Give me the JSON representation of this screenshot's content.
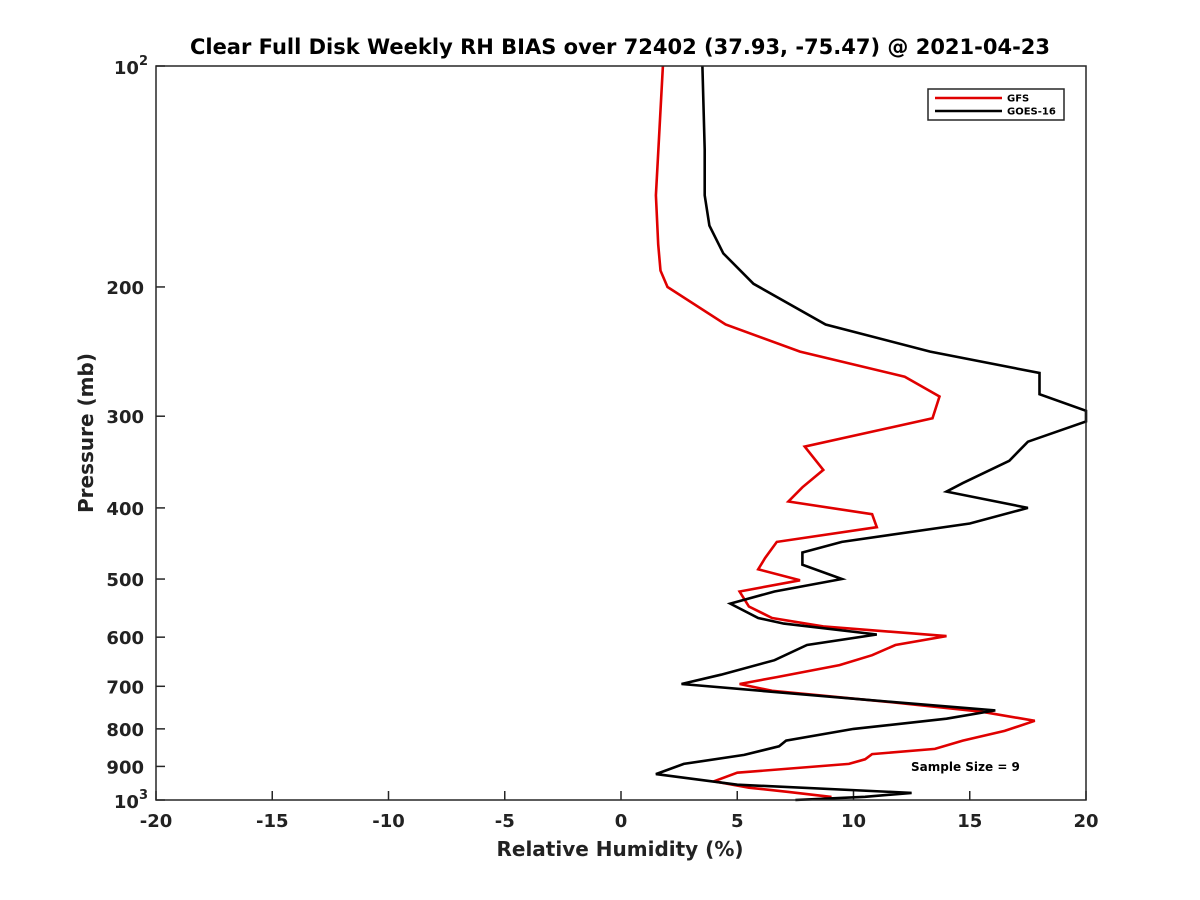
{
  "chart_data": {
    "type": "line",
    "title": "Clear Full Disk Weekly RH BIAS over 72402 (37.93, -75.47) @ 2021-04-23",
    "xlabel": "Relative Humidity (%)",
    "ylabel": "Pressure (mb)",
    "xlim": [
      -20,
      20
    ],
    "ylim": [
      100,
      1000
    ],
    "yscale": "log",
    "yreversed": true,
    "x_ticks": [
      "-20",
      "-15",
      "-10",
      "-5",
      "0",
      "5",
      "10",
      "15",
      "20"
    ],
    "y_ticks": [
      {
        "value": 100,
        "base": "10",
        "exp": "2"
      },
      {
        "value": 200,
        "label": "200"
      },
      {
        "value": 300,
        "label": "300"
      },
      {
        "value": 400,
        "label": "400"
      },
      {
        "value": 500,
        "label": "500"
      },
      {
        "value": 600,
        "label": "600"
      },
      {
        "value": 700,
        "label": "700"
      },
      {
        "value": 800,
        "label": "800"
      },
      {
        "value": 900,
        "label": "900"
      },
      {
        "value": 1000,
        "base": "10",
        "exp": "3"
      }
    ],
    "legend": {
      "position": "top-right",
      "entries": [
        "GFS",
        "GOES-16"
      ]
    },
    "annotation": "Sample Size = 9",
    "series": [
      {
        "name": "GFS",
        "color": "#e00000",
        "points": [
          [
            1.8,
            100
          ],
          [
            1.5,
            150
          ],
          [
            1.6,
            175
          ],
          [
            1.7,
            190
          ],
          [
            2.0,
            200
          ],
          [
            4.5,
            225
          ],
          [
            7.7,
            245
          ],
          [
            12.2,
            265
          ],
          [
            13.7,
            282
          ],
          [
            13.4,
            302
          ],
          [
            7.9,
            330
          ],
          [
            8.7,
            355
          ],
          [
            7.8,
            375
          ],
          [
            7.2,
            392
          ],
          [
            10.8,
            408
          ],
          [
            11.0,
            425
          ],
          [
            6.7,
            445
          ],
          [
            6.2,
            468
          ],
          [
            5.9,
            485
          ],
          [
            7.7,
            502
          ],
          [
            5.1,
            520
          ],
          [
            5.5,
            545
          ],
          [
            6.5,
            565
          ],
          [
            8.7,
            580
          ],
          [
            14.0,
            598
          ],
          [
            11.8,
            615
          ],
          [
            10.8,
            635
          ],
          [
            9.4,
            655
          ],
          [
            6.7,
            680
          ],
          [
            5.1,
            695
          ],
          [
            6.5,
            710
          ],
          [
            11.5,
            735
          ],
          [
            15.5,
            758
          ],
          [
            17.8,
            780
          ],
          [
            16.5,
            805
          ],
          [
            14.7,
            830
          ],
          [
            13.5,
            852
          ],
          [
            10.8,
            866
          ],
          [
            10.5,
            880
          ],
          [
            9.8,
            893
          ],
          [
            5.0,
            918
          ],
          [
            4.0,
            943
          ],
          [
            5.5,
            962
          ],
          [
            7.2,
            975
          ],
          [
            9.0,
            990
          ],
          [
            9.0,
            1000
          ]
        ]
      },
      {
        "name": "GOES-16",
        "color": "#000000",
        "points": [
          [
            3.5,
            100
          ],
          [
            3.6,
            130
          ],
          [
            3.6,
            150
          ],
          [
            3.8,
            165
          ],
          [
            4.4,
            180
          ],
          [
            5.7,
            198
          ],
          [
            8.8,
            225
          ],
          [
            13.3,
            245
          ],
          [
            18.0,
            262
          ],
          [
            18.0,
            280
          ],
          [
            20.0,
            295
          ],
          [
            20.0,
            305
          ],
          [
            17.5,
            325
          ],
          [
            16.7,
            345
          ],
          [
            14.7,
            370
          ],
          [
            14.0,
            380
          ],
          [
            17.5,
            400
          ],
          [
            15.0,
            420
          ],
          [
            9.5,
            445
          ],
          [
            7.8,
            460
          ],
          [
            7.8,
            478
          ],
          [
            9.5,
            500
          ],
          [
            6.6,
            520
          ],
          [
            4.7,
            540
          ],
          [
            5.9,
            565
          ],
          [
            7.0,
            575
          ],
          [
            11.0,
            595
          ],
          [
            8.0,
            615
          ],
          [
            6.6,
            645
          ],
          [
            4.3,
            675
          ],
          [
            2.6,
            695
          ],
          [
            10.5,
            730
          ],
          [
            16.1,
            755
          ],
          [
            14.0,
            775
          ],
          [
            10.0,
            800
          ],
          [
            7.1,
            830
          ],
          [
            6.8,
            845
          ],
          [
            5.3,
            868
          ],
          [
            2.7,
            893
          ],
          [
            1.5,
            922
          ],
          [
            5.0,
            953
          ],
          [
            12.5,
            978
          ],
          [
            10.5,
            990
          ],
          [
            7.5,
            1000
          ]
        ]
      }
    ]
  }
}
